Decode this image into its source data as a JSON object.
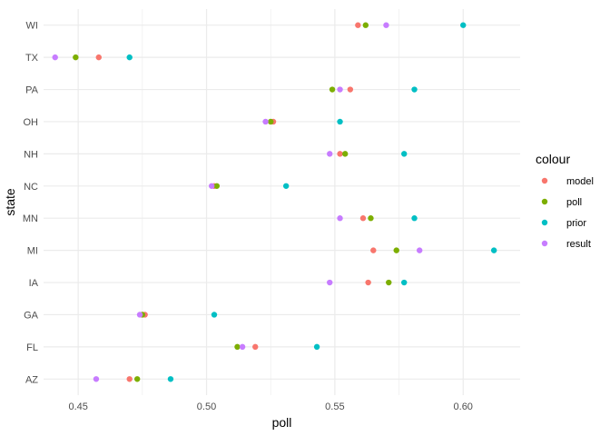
{
  "chart_data": {
    "type": "scatter",
    "xlabel": "poll",
    "ylabel": "state",
    "xlim": [
      0.4365,
      0.6222
    ],
    "x_ticks": [
      0.45,
      0.5,
      0.55,
      0.6
    ],
    "x_tick_labels": [
      "0.45",
      "0.50",
      "0.55",
      "0.60"
    ],
    "categories": [
      "AZ",
      "FL",
      "GA",
      "IA",
      "MI",
      "MN",
      "NC",
      "NH",
      "OH",
      "PA",
      "TX",
      "WI"
    ],
    "grid": true,
    "legend": {
      "title": "colour",
      "placement": "right"
    },
    "series": [
      {
        "name": "model",
        "color": "#F8766D",
        "values": [
          0.47,
          0.519,
          0.476,
          0.563,
          0.565,
          0.561,
          0.503,
          0.552,
          0.526,
          0.556,
          0.458,
          0.559
        ]
      },
      {
        "name": "poll",
        "color": "#7CAE00",
        "values": [
          0.473,
          0.512,
          0.475,
          0.571,
          0.574,
          0.564,
          0.504,
          0.554,
          0.525,
          0.549,
          0.449,
          0.562
        ]
      },
      {
        "name": "prior",
        "color": "#00BFC4",
        "values": [
          0.486,
          0.543,
          0.503,
          0.577,
          0.612,
          0.581,
          0.531,
          0.577,
          0.552,
          0.581,
          0.47,
          0.6
        ]
      },
      {
        "name": "result",
        "color": "#C77CFF",
        "values": [
          0.457,
          0.514,
          0.474,
          0.548,
          0.583,
          0.552,
          0.502,
          0.548,
          0.523,
          0.552,
          0.441,
          0.57
        ]
      }
    ]
  }
}
